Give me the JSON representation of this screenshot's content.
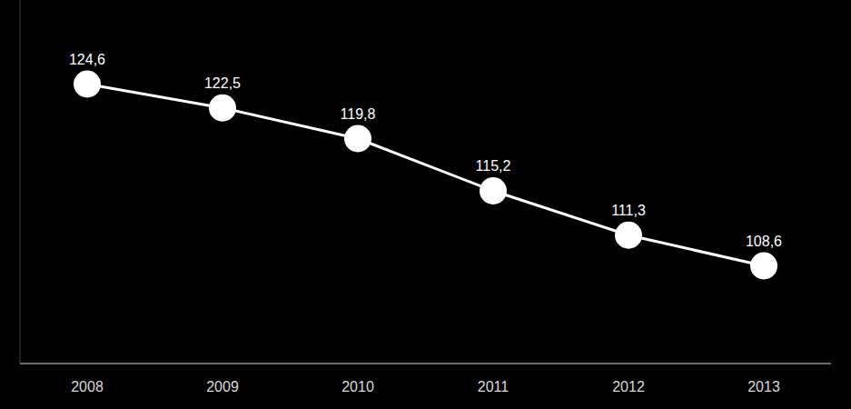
{
  "chart_data": {
    "type": "line",
    "categories": [
      "2008",
      "2009",
      "2010",
      "2011",
      "2012",
      "2013"
    ],
    "values": [
      124.6,
      122.5,
      119.8,
      115.2,
      111.3,
      108.6
    ],
    "value_labels": [
      "124,6",
      "122,5",
      "119,8",
      "115,2",
      "111,3",
      "108,6"
    ],
    "color": "#ffffff",
    "marker": "circle",
    "line_style": "solid",
    "ylim": [
      100,
      132
    ],
    "data_labels": true,
    "grid": false,
    "tick_labels": "x"
  }
}
